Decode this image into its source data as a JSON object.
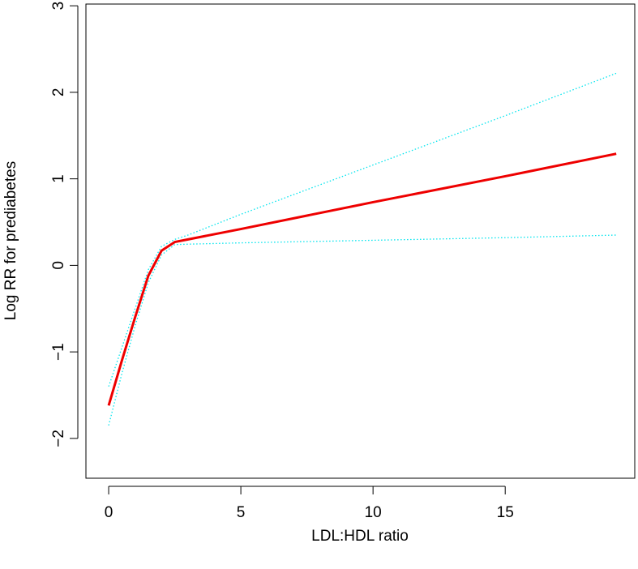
{
  "chart_data": {
    "type": "line",
    "x_label": "LDL:HDL ratio",
    "y_label": "Log RR for prediabetes",
    "x": [
      0,
      0.5,
      1,
      1.5,
      2,
      2.5,
      3,
      5,
      10,
      15,
      19.2
    ],
    "series": [
      {
        "color": "#00e5ee",
        "style": "dotted",
        "values": [
          -1.4,
          -0.95,
          -0.5,
          -0.05,
          0.22,
          0.3,
          0.35,
          0.59,
          1.16,
          1.73,
          2.22
        ]
      },
      {
        "color": "#00e5ee",
        "style": "dotted",
        "values": [
          -1.85,
          -1.25,
          -0.7,
          -0.2,
          0.12,
          0.24,
          0.245,
          0.26,
          0.29,
          0.32,
          0.35
        ]
      },
      {
        "color": "#ee0000",
        "style": "solid",
        "values": [
          -1.62,
          -1.1,
          -0.6,
          -0.12,
          0.17,
          0.27,
          0.3,
          0.42,
          0.73,
          1.03,
          1.29
        ]
      }
    ],
    "xlim": [
      -0.86,
      19.9
    ],
    "ylim": [
      -2.46,
      3.02
    ],
    "xticks": [
      0,
      5,
      10,
      15
    ],
    "yticks": [
      {
        "value": -2,
        "label": "−2"
      },
      {
        "value": -1,
        "label": "−1"
      },
      0,
      1,
      2,
      3
    ],
    "grid": false
  }
}
